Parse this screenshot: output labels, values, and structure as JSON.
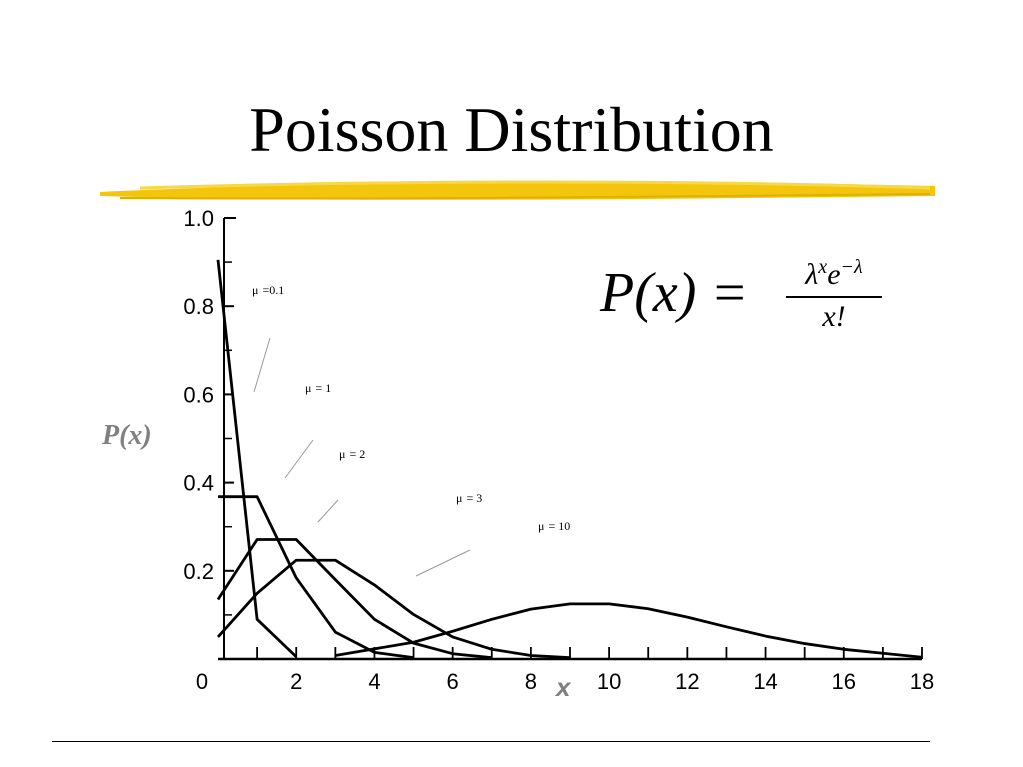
{
  "slide": {
    "title": "Poisson Distribution"
  },
  "formula": {
    "lhs": "P(x) =",
    "numerator_base": "λ",
    "numerator_exp_x": "x",
    "numerator_e": "e",
    "numerator_exp_lambda": "−λ",
    "denominator": "x!"
  },
  "colors": {
    "title_underline": "#f2c300",
    "axis_label": "#808080",
    "curves": "#000000"
  },
  "chart_data": {
    "type": "line",
    "title": "",
    "xlabel": "x",
    "ylabel": "P(x)",
    "xlim": [
      0,
      18
    ],
    "ylim": [
      0,
      1.0
    ],
    "x_ticks": [
      "0",
      "2",
      "4",
      "6",
      "8",
      "10",
      "12",
      "14",
      "16",
      "18"
    ],
    "y_ticks": [
      "0.2",
      "0.4",
      "0.6",
      "0.8",
      "1.0"
    ],
    "x_tick_values": [
      0,
      2,
      4,
      6,
      8,
      10,
      12,
      14,
      16,
      18
    ],
    "y_tick_values": [
      0.2,
      0.4,
      0.6,
      0.8,
      1.0
    ],
    "series": [
      {
        "name": "μ =0.1",
        "label_mu": "μ",
        "label_rest": "=0.1",
        "points": [
          [
            0,
            0.905
          ],
          [
            1,
            0.09
          ],
          [
            2,
            0.005
          ]
        ]
      },
      {
        "name": "μ = 1",
        "label_mu": "μ",
        "label_rest": "= 1",
        "points": [
          [
            0,
            0.368
          ],
          [
            1,
            0.368
          ],
          [
            2,
            0.184
          ],
          [
            3,
            0.061
          ],
          [
            4,
            0.015
          ],
          [
            5,
            0.003
          ]
        ]
      },
      {
        "name": "μ = 2",
        "label_mu": "μ",
        "label_rest": "= 2",
        "points": [
          [
            0,
            0.135
          ],
          [
            1,
            0.271
          ],
          [
            2,
            0.271
          ],
          [
            3,
            0.18
          ],
          [
            4,
            0.09
          ],
          [
            5,
            0.036
          ],
          [
            6,
            0.012
          ],
          [
            7,
            0.003
          ]
        ]
      },
      {
        "name": "μ = 3",
        "label_mu": "μ",
        "label_rest": "= 3",
        "points": [
          [
            0,
            0.05
          ],
          [
            1,
            0.149
          ],
          [
            2,
            0.224
          ],
          [
            3,
            0.224
          ],
          [
            4,
            0.168
          ],
          [
            5,
            0.101
          ],
          [
            6,
            0.05
          ],
          [
            7,
            0.022
          ],
          [
            8,
            0.008
          ],
          [
            9,
            0.003
          ]
        ]
      },
      {
        "name": "μ = 10",
        "label_mu": "μ",
        "label_rest": "= 10",
        "points": [
          [
            3,
            0.008
          ],
          [
            5,
            0.038
          ],
          [
            6,
            0.063
          ],
          [
            7,
            0.09
          ],
          [
            8,
            0.113
          ],
          [
            9,
            0.125
          ],
          [
            10,
            0.125
          ],
          [
            11,
            0.114
          ],
          [
            12,
            0.095
          ],
          [
            13,
            0.073
          ],
          [
            14,
            0.052
          ],
          [
            15,
            0.035
          ],
          [
            16,
            0.022
          ],
          [
            17,
            0.013
          ],
          [
            18,
            0.004
          ]
        ]
      }
    ]
  }
}
